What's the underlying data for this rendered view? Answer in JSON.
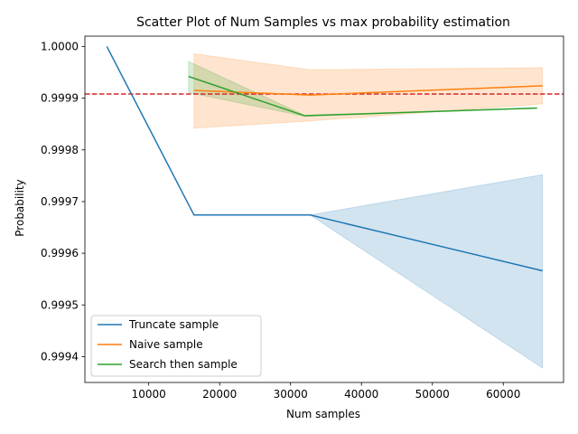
{
  "chart_data": {
    "type": "line",
    "title": "Scatter Plot of Num Samples vs max probability estimation",
    "xlabel": "Num samples",
    "ylabel": "Probability",
    "xlim": [
      1000,
      68500
    ],
    "ylim": [
      0.99935,
      1.00002
    ],
    "x_ticks": [
      10000,
      20000,
      30000,
      40000,
      50000,
      60000
    ],
    "y_ticks": [
      0.9994,
      0.9995,
      0.9996,
      0.9997,
      0.9998,
      0.9999,
      1.0
    ],
    "x_tick_labels": [
      "10000",
      "20000",
      "30000",
      "40000",
      "50000",
      "60000"
    ],
    "y_tick_labels": [
      "0.9994",
      "0.9995",
      "0.9996",
      "0.9997",
      "0.9998",
      "0.9999",
      "1.0000"
    ],
    "grid": false,
    "legend_position": "lower-left",
    "reference_line": {
      "y": 0.999908,
      "color": "#d62728",
      "style": "dashed"
    },
    "series": [
      {
        "name": "Truncate sample",
        "color": "#1f77b4",
        "x": [
          4096,
          16384,
          32768,
          65536
        ],
        "y": [
          1.0,
          0.999674,
          0.999674,
          0.999566
        ],
        "band_low": [
          1.0,
          0.999674,
          0.999674,
          0.999378
        ],
        "band_high": [
          1.0,
          0.999674,
          0.999674,
          0.999752
        ]
      },
      {
        "name": "Naive sample",
        "color": "#ff7f0e",
        "x": [
          16384,
          32768,
          65536
        ],
        "y": [
          0.999915,
          0.999906,
          0.999924
        ],
        "band_low": [
          0.999842,
          0.999856,
          0.999889
        ],
        "band_high": [
          0.999986,
          0.999955,
          0.999959
        ]
      },
      {
        "name": "Search then sample",
        "color": "#2ca02c",
        "x": [
          15616,
          32000,
          64768
        ],
        "y": [
          0.999942,
          0.999866,
          0.999881
        ],
        "band_low": [
          0.999911,
          0.999865,
          0.999881
        ],
        "band_high": [
          0.999971,
          0.999867,
          0.999881
        ]
      }
    ]
  }
}
